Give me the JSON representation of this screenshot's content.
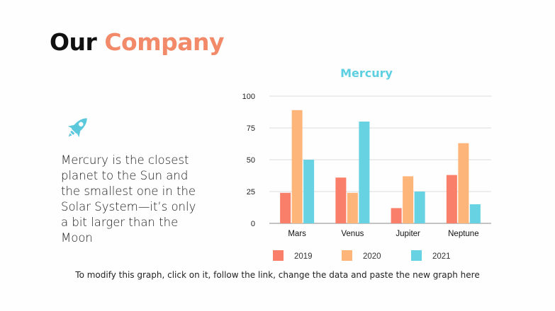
{
  "slide": {
    "title_part1": "Our",
    "title_part2": "Company",
    "description": "Mercury is the closest planet to the Sun and the smallest one in the Solar System—it’s only a bit larger than the Moon",
    "footer_note": "To modify this graph, click on it, follow the link, change the data and paste the new graph here",
    "icon": "rocket-icon",
    "colors": {
      "accent": "#f28a6a",
      "icon": "#5cc8dc",
      "chart_title": "#5ccfe0"
    }
  },
  "chart_data": {
    "type": "bar",
    "title": "Mercury",
    "categories": [
      "Mars",
      "Venus",
      "Jupiter",
      "Neptune"
    ],
    "series": [
      {
        "name": "2019",
        "color": "#fa7f6a",
        "values": [
          24,
          36,
          12,
          38
        ]
      },
      {
        "name": "2020",
        "color": "#fdb57a",
        "values": [
          89,
          24,
          37,
          63
        ]
      },
      {
        "name": "2021",
        "color": "#66d2e2",
        "values": [
          50,
          80,
          25,
          15
        ]
      }
    ],
    "ylim": [
      0,
      100
    ],
    "yticks": [
      "0",
      "25",
      "50",
      "75",
      "100"
    ],
    "grid": true,
    "legend": "bottom"
  }
}
